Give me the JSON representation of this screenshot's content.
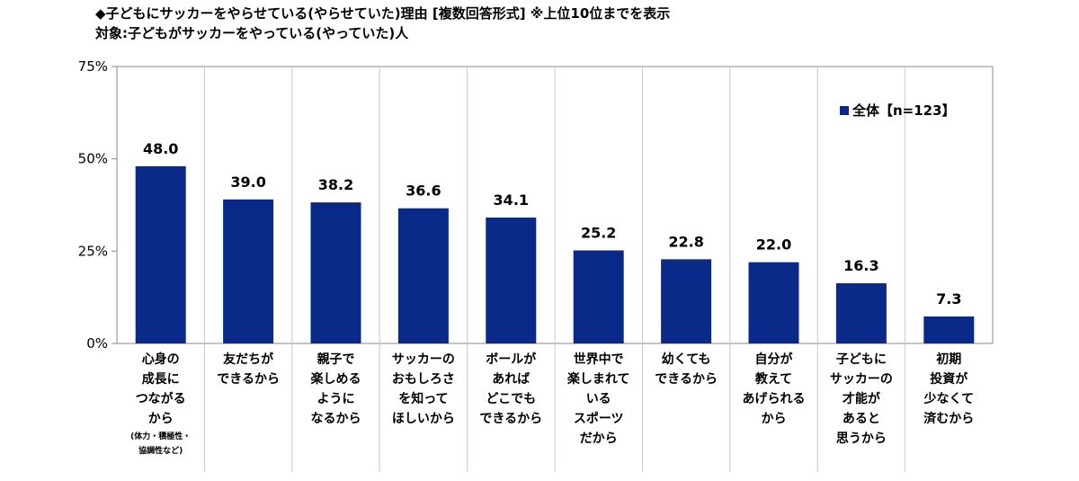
{
  "header": {
    "title": "◆子どもにサッカーをやらせている(やらせていた)理由 [複数回答形式] ※上位10位までを表示",
    "subtitle": "対象:子どもがサッカーをやっている(やっていた)人"
  },
  "colors": {
    "bar": "#0a2a8a",
    "grid": "#c8c8c8",
    "axis": "#888888"
  },
  "chart_data": {
    "type": "bar",
    "categories": [
      [
        "心身の",
        "成長に",
        "つながる",
        "から"
      ],
      [
        "友だちが",
        "できるから"
      ],
      [
        "親子で",
        "楽しめる",
        "ように",
        "なるから"
      ],
      [
        "サッカーの",
        "おもしろさ",
        "を知って",
        "ほしいから"
      ],
      [
        "ボールが",
        "あれば",
        "どこでも",
        "できるから"
      ],
      [
        "世界中で",
        "楽しまれて",
        "いる",
        "スポーツ",
        "だから"
      ],
      [
        "幼くても",
        "できるから"
      ],
      [
        "自分が",
        "教えて",
        "あげられる",
        "から"
      ],
      [
        "子どもに",
        "サッカーの",
        "才能が",
        "あると",
        "思うから"
      ],
      [
        "初期",
        "投資が",
        "少なくて",
        "済むから"
      ]
    ],
    "category_notes": [
      [
        "(体力・積極性・",
        "協調性など)"
      ],
      [],
      [],
      [],
      [],
      [],
      [],
      [],
      [],
      []
    ],
    "series": [
      {
        "name": "全体【n=123】",
        "values": [
          48.0,
          39.0,
          38.2,
          36.6,
          34.1,
          25.2,
          22.8,
          22.0,
          16.3,
          7.3
        ]
      }
    ],
    "value_labels": [
      "48.0",
      "39.0",
      "38.2",
      "36.6",
      "34.1",
      "25.2",
      "22.8",
      "22.0",
      "16.3",
      "7.3"
    ],
    "ylim": [
      0,
      75
    ],
    "yticks": [
      0,
      25,
      50,
      75
    ],
    "ytick_labels": [
      "0%",
      "25%",
      "50%",
      "75%"
    ],
    "legend": "inside top-right",
    "grid": "vertical separators"
  }
}
